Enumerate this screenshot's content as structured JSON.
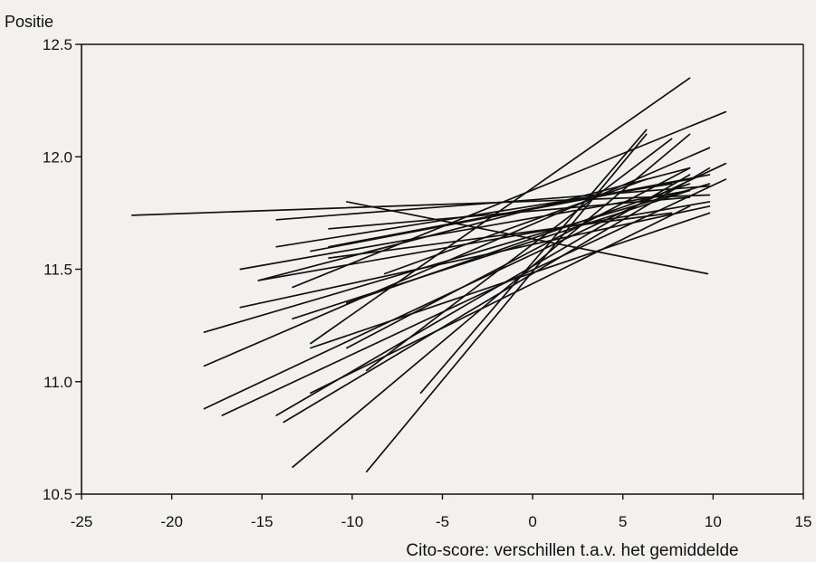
{
  "chart_data": {
    "type": "line",
    "title": "",
    "ylabel": "Positie",
    "xlabel": "Cito-score: verschillen t.a.v. het gemiddelde",
    "xlim": [
      -25,
      15
    ],
    "ylim": [
      10.5,
      12.5
    ],
    "xticks": [
      "-25",
      "-20",
      "-15",
      "-10",
      "-5",
      "0",
      "5",
      "10",
      "15"
    ],
    "yticks": [
      "10.5",
      "11.0",
      "11.5",
      "12.0",
      "12.5"
    ],
    "grid": false,
    "legend": "none",
    "line_color": "#111111",
    "series": [
      {
        "x": [
          -22.2,
          9.8
        ],
        "y": [
          11.74,
          11.83
        ]
      },
      {
        "x": [
          -10.3,
          9.7
        ],
        "y": [
          11.8,
          11.48
        ]
      },
      {
        "x": [
          -12.3,
          8.7
        ],
        "y": [
          11.17,
          12.35
        ]
      },
      {
        "x": [
          -13.3,
          10.7
        ],
        "y": [
          11.42,
          12.2
        ]
      },
      {
        "x": [
          -13.3,
          8.7
        ],
        "y": [
          10.62,
          12.1
        ]
      },
      {
        "x": [
          -9.2,
          6.3
        ],
        "y": [
          10.6,
          12.1
        ]
      },
      {
        "x": [
          -18.2,
          9.8
        ],
        "y": [
          11.07,
          12.04
        ]
      },
      {
        "x": [
          -18.2,
          10.7
        ],
        "y": [
          10.88,
          11.97
        ]
      },
      {
        "x": [
          -18.2,
          9.8
        ],
        "y": [
          11.22,
          11.88
        ]
      },
      {
        "x": [
          -17.2,
          10.7
        ],
        "y": [
          10.85,
          11.9
        ]
      },
      {
        "x": [
          -16.2,
          8.7
        ],
        "y": [
          11.5,
          11.85
        ]
      },
      {
        "x": [
          -16.2,
          9.8
        ],
        "y": [
          11.33,
          11.78
        ]
      },
      {
        "x": [
          -15.2,
          8.7
        ],
        "y": [
          11.45,
          11.95
        ]
      },
      {
        "x": [
          -14.2,
          8.7
        ],
        "y": [
          10.85,
          11.92
        ]
      },
      {
        "x": [
          -13.8,
          9.8
        ],
        "y": [
          10.82,
          11.95
        ]
      },
      {
        "x": [
          -13.3,
          8.7
        ],
        "y": [
          11.28,
          11.85
        ]
      },
      {
        "x": [
          -12.3,
          8.7
        ],
        "y": [
          11.58,
          11.9
        ]
      },
      {
        "x": [
          -12.3,
          9.8
        ],
        "y": [
          11.15,
          11.75
        ]
      },
      {
        "x": [
          -11.3,
          8.7
        ],
        "y": [
          11.68,
          11.82
        ]
      },
      {
        "x": [
          -10.3,
          8.7
        ],
        "y": [
          11.35,
          11.88
        ]
      },
      {
        "x": [
          -9.2,
          7.7
        ],
        "y": [
          11.05,
          12.08
        ]
      },
      {
        "x": [
          -8.2,
          6.3
        ],
        "y": [
          11.48,
          11.9
        ]
      },
      {
        "x": [
          -6.2,
          6.3
        ],
        "y": [
          10.95,
          12.12
        ]
      },
      {
        "x": [
          -14.2,
          7.7
        ],
        "y": [
          11.6,
          11.88
        ]
      },
      {
        "x": [
          -15.2,
          9.8
        ],
        "y": [
          11.45,
          11.8
        ]
      },
      {
        "x": [
          -12.3,
          8.7
        ],
        "y": [
          10.95,
          11.78
        ]
      },
      {
        "x": [
          -10.3,
          8.7
        ],
        "y": [
          11.15,
          11.95
        ]
      },
      {
        "x": [
          -11.3,
          7.7
        ],
        "y": [
          11.55,
          11.75
        ]
      },
      {
        "x": [
          -14.2,
          9.8
        ],
        "y": [
          11.72,
          11.87
        ]
      },
      {
        "x": [
          -11.3,
          9.8
        ],
        "y": [
          11.6,
          11.92
        ]
      }
    ]
  }
}
